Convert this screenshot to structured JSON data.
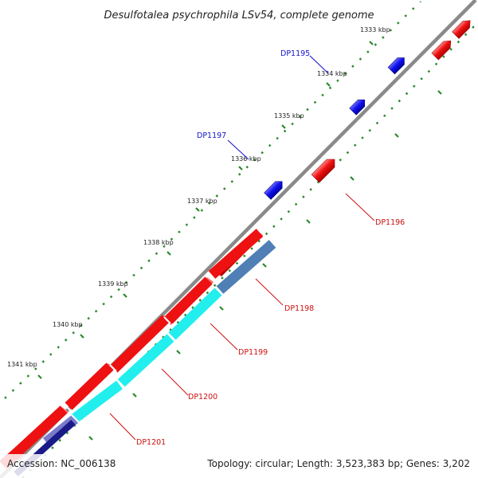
{
  "map": {
    "title": "Desulfotalea psychrophila LSv54, complete genome",
    "accession": "Accession: NC_006138",
    "summary": "Topology: circular; Length: 3,523,383 bp; Genes: 3,202",
    "tick_labels": [
      "1333 kbp",
      "1334 kbp",
      "1335 kbp",
      "1336 kbp",
      "1337 kbp",
      "1338 kbp",
      "1339 kbp",
      "1340 kbp",
      "1341 kbp"
    ],
    "gene_labels": {
      "dp1195": "DP1195",
      "dp1197": "DP1197",
      "dp1196": "DP1196",
      "dp1198": "DP1198",
      "dp1199": "DP1199",
      "dp1200": "DP1200",
      "dp1201": "DP1201"
    }
  },
  "colors": {
    "backbone": "#8a8a8a",
    "forward_cds": "#ee1111",
    "reverse_cds": "#1111ee",
    "cyan_feature": "#22eeee",
    "steelblue_feature": "#4f7fb5",
    "navy_feature": "#1a1a88",
    "tick": "#2a8a2a",
    "label_blue": "#1010cc",
    "label_red": "#cc1010"
  }
}
